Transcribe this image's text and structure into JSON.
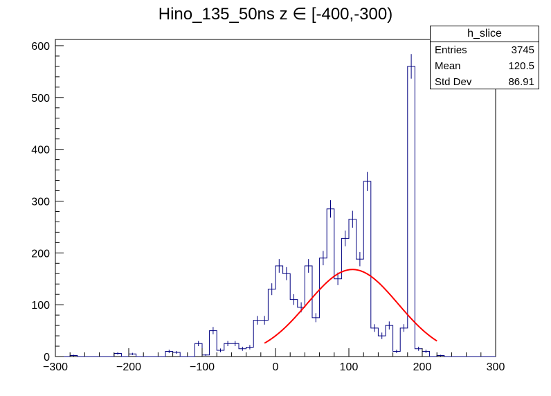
{
  "chart_data": {
    "type": "bar",
    "title": "Hino_135_50ns z  ∈ [-400,-300)",
    "xlabel": "",
    "ylabel": "",
    "xlim": [
      -300,
      300
    ],
    "ylim": [
      0,
      612
    ],
    "x_ticks": [
      "−300",
      "−200",
      "−100",
      "0",
      "100",
      "200",
      "300"
    ],
    "y_ticks": [
      "0",
      "100",
      "200",
      "300",
      "400",
      "500",
      "600"
    ],
    "bin_width": 10,
    "bin_edges_start": -300,
    "values": [
      0,
      0,
      2,
      0,
      0,
      0,
      0,
      0,
      6,
      0,
      5,
      0,
      0,
      0,
      0,
      10,
      8,
      0,
      0,
      25,
      3,
      50,
      12,
      25,
      25,
      15,
      18,
      70,
      70,
      130,
      175,
      160,
      110,
      95,
      175,
      75,
      190,
      285,
      150,
      228,
      265,
      188,
      338,
      55,
      40,
      60,
      10,
      55,
      560,
      15,
      10,
      0,
      2,
      0,
      0,
      0,
      0,
      0,
      0,
      0
    ],
    "errors": [
      0,
      0,
      1.4,
      0,
      0,
      0,
      0,
      0,
      2.4,
      0,
      2.2,
      0,
      0,
      0,
      0,
      3.2,
      2.8,
      0,
      0,
      5,
      1.7,
      7.1,
      3.5,
      5,
      5,
      3.9,
      4.2,
      8.4,
      8.4,
      11.4,
      13.2,
      12.6,
      10.5,
      9.7,
      13.2,
      8.7,
      13.8,
      16.9,
      12.2,
      15.1,
      16.3,
      13.7,
      18.4,
      7.4,
      6.3,
      7.7,
      3.2,
      7.4,
      23.7,
      3.9,
      3.2,
      0,
      1.4,
      0,
      0,
      0,
      0,
      0,
      0,
      0
    ],
    "fit": {
      "type": "gaussian",
      "color": "#ff0000",
      "amplitude": 168,
      "mean": 105,
      "sigma": 62,
      "x_range": [
        -15,
        220
      ]
    },
    "hist_color": "#000080",
    "grid": false,
    "stats": {
      "title": "h_slice",
      "rows": [
        {
          "label": "Entries",
          "value": "3745"
        },
        {
          "label": "Mean",
          "value": "120.5"
        },
        {
          "label": "Std Dev",
          "value": "86.91"
        }
      ]
    }
  }
}
